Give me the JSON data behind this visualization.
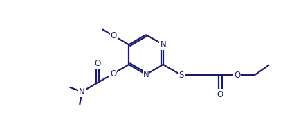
{
  "background": "#ffffff",
  "line_color": "#1a1a6e",
  "lw": 1.6,
  "fs": 8.5,
  "figsize": [
    4.22,
    1.7
  ],
  "dpi": 100,
  "xlim": [
    0,
    10
  ],
  "ylim": [
    0,
    4
  ]
}
